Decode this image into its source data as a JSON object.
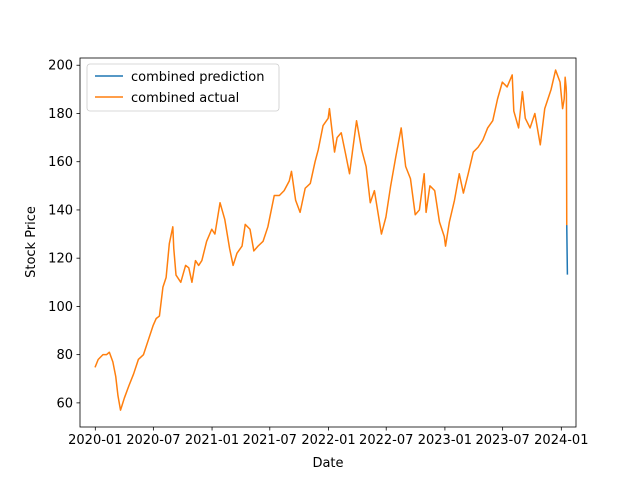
{
  "chart_data": {
    "type": "line",
    "title": "",
    "xlabel": "Date",
    "ylabel": "Stock Price",
    "xlim": [
      "2019-11-14",
      "2024-02-16"
    ],
    "ylim": [
      50,
      203
    ],
    "grid": false,
    "legend_position": "top-left",
    "x_ticks": [
      "2020-01",
      "2020-07",
      "2021-01",
      "2021-07",
      "2022-01",
      "2022-07",
      "2023-01",
      "2023-07",
      "2024-01"
    ],
    "y_ticks": [
      60,
      80,
      100,
      120,
      140,
      160,
      180,
      200
    ],
    "series": [
      {
        "name": "combined prediction",
        "color": "#1f77b4",
        "points": [
          [
            "2024-01-18",
            134
          ],
          [
            "2024-01-20",
            113.5
          ]
        ]
      },
      {
        "name": "combined actual",
        "color": "#ff7f0e",
        "points": [
          [
            "2020-01-01",
            75
          ],
          [
            "2020-01-10",
            78
          ],
          [
            "2020-01-25",
            80
          ],
          [
            "2020-02-05",
            80
          ],
          [
            "2020-02-14",
            81
          ],
          [
            "2020-02-25",
            77
          ],
          [
            "2020-03-05",
            71
          ],
          [
            "2020-03-12",
            63
          ],
          [
            "2020-03-20",
            57
          ],
          [
            "2020-03-25",
            59
          ],
          [
            "2020-04-01",
            62
          ],
          [
            "2020-04-15",
            67
          ],
          [
            "2020-04-30",
            72
          ],
          [
            "2020-05-15",
            78
          ],
          [
            "2020-05-31",
            80
          ],
          [
            "2020-06-15",
            86
          ],
          [
            "2020-06-30",
            92
          ],
          [
            "2020-07-10",
            95
          ],
          [
            "2020-07-20",
            96
          ],
          [
            "2020-07-31",
            108
          ],
          [
            "2020-08-10",
            112
          ],
          [
            "2020-08-20",
            126
          ],
          [
            "2020-08-31",
            133
          ],
          [
            "2020-09-03",
            124
          ],
          [
            "2020-09-10",
            113
          ],
          [
            "2020-09-25",
            110
          ],
          [
            "2020-10-10",
            117
          ],
          [
            "2020-10-20",
            116
          ],
          [
            "2020-10-30",
            110
          ],
          [
            "2020-11-10",
            119
          ],
          [
            "2020-11-20",
            117
          ],
          [
            "2020-11-30",
            119
          ],
          [
            "2020-12-15",
            127
          ],
          [
            "2020-12-31",
            132
          ],
          [
            "2021-01-10",
            130
          ],
          [
            "2021-01-26",
            143
          ],
          [
            "2021-02-10",
            136
          ],
          [
            "2021-02-25",
            124
          ],
          [
            "2021-03-08",
            117
          ],
          [
            "2021-03-20",
            122
          ],
          [
            "2021-04-05",
            125
          ],
          [
            "2021-04-15",
            134
          ],
          [
            "2021-04-30",
            132
          ],
          [
            "2021-05-12",
            123
          ],
          [
            "2021-05-25",
            125
          ],
          [
            "2021-06-10",
            127
          ],
          [
            "2021-06-25",
            133
          ],
          [
            "2021-07-15",
            146
          ],
          [
            "2021-07-31",
            146
          ],
          [
            "2021-08-15",
            148
          ],
          [
            "2021-08-31",
            152
          ],
          [
            "2021-09-07",
            156
          ],
          [
            "2021-09-20",
            144
          ],
          [
            "2021-10-04",
            139
          ],
          [
            "2021-10-20",
            149
          ],
          [
            "2021-11-05",
            151
          ],
          [
            "2021-11-20",
            160
          ],
          [
            "2021-11-30",
            165
          ],
          [
            "2021-12-15",
            175
          ],
          [
            "2021-12-31",
            178
          ],
          [
            "2022-01-04",
            182
          ],
          [
            "2022-01-20",
            164
          ],
          [
            "2022-01-28",
            170
          ],
          [
            "2022-02-10",
            172
          ],
          [
            "2022-02-24",
            163
          ],
          [
            "2022-03-08",
            155
          ],
          [
            "2022-03-30",
            177
          ],
          [
            "2022-04-15",
            165
          ],
          [
            "2022-04-29",
            158
          ],
          [
            "2022-05-12",
            143
          ],
          [
            "2022-05-25",
            148
          ],
          [
            "2022-06-16",
            130
          ],
          [
            "2022-06-30",
            137
          ],
          [
            "2022-07-15",
            150
          ],
          [
            "2022-07-31",
            162
          ],
          [
            "2022-08-17",
            174
          ],
          [
            "2022-08-31",
            158
          ],
          [
            "2022-09-15",
            153
          ],
          [
            "2022-09-30",
            138
          ],
          [
            "2022-10-13",
            140
          ],
          [
            "2022-10-28",
            155
          ],
          [
            "2022-11-03",
            139
          ],
          [
            "2022-11-15",
            150
          ],
          [
            "2022-11-30",
            148
          ],
          [
            "2022-12-15",
            135
          ],
          [
            "2022-12-30",
            129
          ],
          [
            "2023-01-03",
            125
          ],
          [
            "2023-01-15",
            135
          ],
          [
            "2023-01-31",
            144
          ],
          [
            "2023-02-15",
            155
          ],
          [
            "2023-02-28",
            147
          ],
          [
            "2023-03-15",
            155
          ],
          [
            "2023-03-31",
            164
          ],
          [
            "2023-04-15",
            166
          ],
          [
            "2023-04-30",
            169
          ],
          [
            "2023-05-15",
            174
          ],
          [
            "2023-05-31",
            177
          ],
          [
            "2023-06-15",
            186
          ],
          [
            "2023-06-30",
            193
          ],
          [
            "2023-07-15",
            191
          ],
          [
            "2023-07-31",
            196
          ],
          [
            "2023-08-05",
            181
          ],
          [
            "2023-08-20",
            174
          ],
          [
            "2023-09-01",
            189
          ],
          [
            "2023-09-10",
            178
          ],
          [
            "2023-09-25",
            174
          ],
          [
            "2023-10-10",
            180
          ],
          [
            "2023-10-27",
            167
          ],
          [
            "2023-11-10",
            182
          ],
          [
            "2023-11-30",
            190
          ],
          [
            "2023-12-14",
            198
          ],
          [
            "2023-12-28",
            193
          ],
          [
            "2024-01-05",
            182
          ],
          [
            "2024-01-10",
            186
          ],
          [
            "2024-01-13",
            195
          ],
          [
            "2024-01-16",
            191
          ],
          [
            "2024-01-17",
            188
          ],
          [
            "2024-01-18",
            134
          ]
        ]
      }
    ]
  }
}
